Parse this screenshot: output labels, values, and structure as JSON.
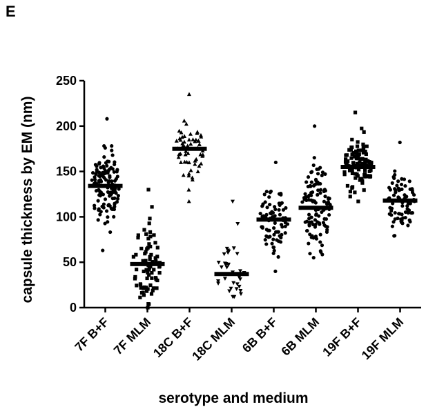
{
  "panel_label": "E",
  "chart_data": {
    "type": "scatter",
    "subtype": "column-dot-plot-with-median",
    "title": "",
    "xlabel": "serotype and medium",
    "ylabel": "capsule thickness by EM (nm)",
    "ylim": [
      0,
      250
    ],
    "yticks": [
      0,
      50,
      100,
      150,
      200,
      250
    ],
    "grid": false,
    "legend": "none",
    "colors": {
      "marks": "#000000"
    },
    "categories": [
      "7F B+F",
      "7F MLM",
      "18C B+F",
      "18C MLM",
      "6B B+F",
      "6B MLM",
      "19F B+F",
      "19F MLM"
    ],
    "series": [
      {
        "category": "7F B+F",
        "marker": "circle",
        "median": 134,
        "min": 63,
        "max": 208,
        "n": 130
      },
      {
        "category": "7F MLM",
        "marker": "square",
        "median": 48,
        "min": 0,
        "max": 130,
        "n": 80
      },
      {
        "category": "18C B+F",
        "marker": "triangle-up",
        "median": 175,
        "min": 117,
        "max": 235,
        "n": 60
      },
      {
        "category": "18C MLM",
        "marker": "triangle-down",
        "median": 37,
        "min": 12,
        "max": 117,
        "n": 35
      },
      {
        "category": "6B B+F",
        "marker": "circle",
        "median": 97,
        "min": 40,
        "max": 160,
        "n": 85
      },
      {
        "category": "6B MLM",
        "marker": "circle",
        "median": 110,
        "min": 55,
        "max": 200,
        "n": 120
      },
      {
        "category": "19F B+F",
        "marker": "square",
        "median": 155,
        "min": 117,
        "max": 215,
        "n": 110
      },
      {
        "category": "19F MLM",
        "marker": "circle",
        "median": 118,
        "min": 79,
        "max": 182,
        "n": 80
      }
    ]
  }
}
